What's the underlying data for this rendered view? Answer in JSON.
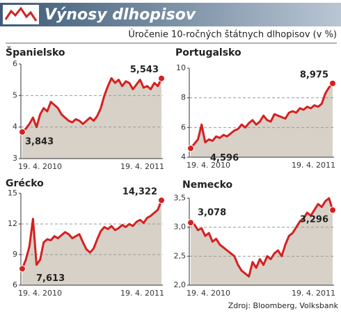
{
  "title": "Výnosy dlhopisov",
  "subtitle": "Úročenie 10-ročných štátnych dlhopisov (v %)",
  "source": "Zdroj: Bloomberg, Volksbank",
  "chart_data": [
    {
      "type": "line",
      "title": "Španielsko",
      "color": "#d42020",
      "area_color": "#d8d1c7",
      "grid": true,
      "ylim": [
        3,
        6
      ],
      "yticks": [
        3,
        4,
        5,
        6
      ],
      "categories": [
        "19. 4. 2010",
        null,
        null,
        null,
        null,
        null,
        null,
        null,
        null,
        null,
        null,
        null,
        null,
        null,
        null,
        null,
        null,
        null,
        null,
        null,
        null,
        null,
        null,
        null,
        null,
        null,
        null,
        null,
        null,
        null,
        null,
        null,
        null,
        null,
        null,
        null,
        null,
        null,
        null,
        "19. 4. 2011"
      ],
      "values": [
        3.843,
        3.95,
        4.1,
        4.3,
        4.0,
        4.4,
        4.6,
        4.5,
        4.8,
        4.7,
        4.6,
        4.4,
        4.3,
        4.2,
        4.15,
        4.25,
        4.2,
        4.1,
        4.2,
        4.3,
        4.2,
        4.35,
        4.6,
        5.0,
        5.3,
        5.55,
        5.4,
        5.5,
        5.3,
        5.45,
        5.4,
        5.2,
        5.35,
        5.5,
        5.25,
        5.3,
        5.2,
        5.4,
        5.3,
        5.543
      ],
      "value_labels": [
        "3,843",
        null,
        null,
        null,
        null,
        null,
        null,
        null,
        null,
        null,
        null,
        null,
        null,
        null,
        null,
        null,
        null,
        null,
        null,
        null,
        null,
        null,
        null,
        null,
        null,
        null,
        null,
        null,
        null,
        null,
        null,
        null,
        null,
        null,
        null,
        null,
        null,
        null,
        null,
        "5,543"
      ]
    },
    {
      "type": "line",
      "title": "Portugalsko",
      "color": "#d42020",
      "area_color": "#d8d1c7",
      "grid": true,
      "ylim": [
        4,
        10
      ],
      "yticks": [
        4,
        6,
        8,
        10
      ],
      "categories": [
        "19. 4. 2010",
        null,
        null,
        null,
        null,
        null,
        null,
        null,
        null,
        null,
        null,
        null,
        null,
        null,
        null,
        null,
        null,
        null,
        null,
        null,
        null,
        null,
        null,
        null,
        null,
        null,
        null,
        null,
        null,
        null,
        null,
        null,
        null,
        null,
        null,
        null,
        null,
        null,
        null,
        "19. 4. 2011"
      ],
      "values": [
        4.596,
        4.9,
        5.2,
        6.2,
        5.0,
        5.2,
        5.1,
        5.4,
        5.3,
        5.5,
        5.4,
        5.6,
        5.8,
        5.9,
        6.2,
        6.0,
        6.3,
        6.5,
        6.2,
        6.4,
        6.8,
        6.5,
        6.4,
        6.9,
        6.8,
        6.7,
        6.6,
        7.0,
        7.1,
        7.0,
        7.3,
        7.2,
        7.4,
        7.3,
        7.5,
        7.4,
        7.6,
        8.3,
        8.7,
        8.975
      ],
      "value_labels": [
        "4,596",
        null,
        null,
        null,
        null,
        null,
        null,
        null,
        null,
        null,
        null,
        null,
        null,
        null,
        null,
        null,
        null,
        null,
        null,
        null,
        null,
        null,
        null,
        null,
        null,
        null,
        null,
        null,
        null,
        null,
        null,
        null,
        null,
        null,
        null,
        null,
        null,
        null,
        null,
        "8,975"
      ]
    },
    {
      "type": "line",
      "title": "Grécko",
      "color": "#d42020",
      "area_color": "#d8d1c7",
      "grid": true,
      "ylim": [
        6,
        15
      ],
      "yticks": [
        6,
        9,
        12,
        15
      ],
      "categories": [
        "19. 4. 2010",
        null,
        null,
        null,
        null,
        null,
        null,
        null,
        null,
        null,
        null,
        null,
        null,
        null,
        null,
        null,
        null,
        null,
        null,
        null,
        null,
        null,
        null,
        null,
        null,
        null,
        null,
        null,
        null,
        null,
        null,
        null,
        null,
        null,
        null,
        null,
        null,
        null,
        null,
        "19. 4. 2011"
      ],
      "values": [
        7.613,
        8.5,
        9.8,
        12.5,
        8.0,
        8.5,
        10.2,
        10.5,
        10.4,
        10.8,
        10.6,
        10.9,
        11.2,
        11.0,
        10.6,
        10.8,
        11.0,
        10.2,
        9.5,
        9.2,
        9.6,
        10.5,
        11.3,
        11.7,
        11.5,
        11.8,
        11.4,
        11.6,
        11.9,
        11.7,
        12.0,
        11.8,
        12.2,
        12.4,
        12.1,
        12.6,
        12.8,
        13.1,
        13.4,
        14.322
      ],
      "value_labels": [
        "7,613",
        null,
        null,
        null,
        null,
        null,
        null,
        null,
        null,
        null,
        null,
        null,
        null,
        null,
        null,
        null,
        null,
        null,
        null,
        null,
        null,
        null,
        null,
        null,
        null,
        null,
        null,
        null,
        null,
        null,
        null,
        null,
        null,
        null,
        null,
        null,
        null,
        null,
        null,
        "14,322"
      ]
    },
    {
      "type": "line",
      "title": "Nemecko",
      "color": "#d42020",
      "area_color": "#d8d1c7",
      "grid": true,
      "ylim": [
        2,
        3.5
      ],
      "yticks": [
        {
          "value": 2,
          "label": "2,0"
        },
        {
          "value": 2.5,
          "label": "2,5"
        },
        {
          "value": 3,
          "label": "3,0"
        },
        {
          "value": 3.5,
          "label": "3,5"
        }
      ],
      "categories": [
        "19. 4. 2010",
        null,
        null,
        null,
        null,
        null,
        null,
        null,
        null,
        null,
        null,
        null,
        null,
        null,
        null,
        null,
        null,
        null,
        null,
        null,
        null,
        null,
        null,
        null,
        null,
        null,
        null,
        null,
        null,
        null,
        null,
        null,
        null,
        null,
        null,
        null,
        null,
        null,
        null,
        "19. 4. 2011"
      ],
      "values": [
        3.078,
        3.05,
        2.95,
        2.98,
        2.85,
        2.9,
        2.75,
        2.8,
        2.7,
        2.65,
        2.6,
        2.55,
        2.5,
        2.35,
        2.25,
        2.2,
        2.15,
        2.4,
        2.3,
        2.45,
        2.35,
        2.5,
        2.45,
        2.55,
        2.6,
        2.5,
        2.7,
        2.85,
        2.9,
        3.0,
        3.1,
        3.15,
        3.25,
        3.2,
        3.3,
        3.4,
        3.35,
        3.45,
        3.5,
        3.296
      ],
      "value_labels": [
        "3,078",
        null,
        null,
        null,
        null,
        null,
        null,
        null,
        null,
        null,
        null,
        null,
        null,
        null,
        null,
        null,
        null,
        null,
        null,
        null,
        null,
        null,
        null,
        null,
        null,
        null,
        null,
        null,
        null,
        null,
        null,
        null,
        null,
        null,
        null,
        null,
        null,
        null,
        null,
        "3,296"
      ]
    }
  ]
}
